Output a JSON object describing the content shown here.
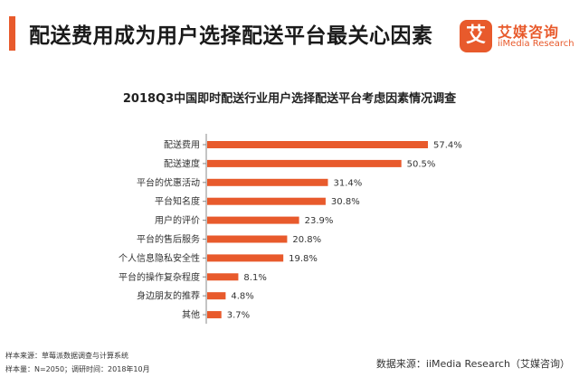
{
  "header": {
    "title": "配送费用成为用户选择配送平台最关心因素"
  },
  "logo": {
    "mark": "艾",
    "name_cn": "艾媒咨询",
    "name_en": "iiMedia Research"
  },
  "footer": {
    "sample_source": "样本来源：草莓派数据调查与计算系统",
    "sample_info": "样本量：N=2050；调研时间：2018年10月",
    "data_source": "数据来源：iiMedia Research（艾媒咨询）"
  },
  "colors": {
    "accent": "#e85a2c",
    "bar": "#e85a2c"
  },
  "chart_data": {
    "type": "bar",
    "orientation": "horizontal",
    "title": "2018Q3中国即时配送行业用户选择配送平台考虑因素情况调查",
    "categories": [
      "配送费用",
      "配送速度",
      "平台的优惠活动",
      "平台知名度",
      "用户的评价",
      "平台的售后服务",
      "个人信息隐私安全性",
      "平台的操作复杂程度",
      "身边朋友的推荐",
      "其他"
    ],
    "values": [
      57.4,
      50.5,
      31.4,
      30.8,
      23.9,
      20.8,
      19.8,
      8.1,
      4.8,
      3.7
    ],
    "value_labels": [
      "57.4%",
      "50.5%",
      "31.4%",
      "30.8%",
      "23.9%",
      "20.8%",
      "19.8%",
      "8.1%",
      "4.8%",
      "3.7%"
    ],
    "unit": "%",
    "xlabel": "",
    "ylabel": "",
    "xlim": [
      0,
      57.4
    ],
    "grid": false,
    "legend": "none"
  }
}
